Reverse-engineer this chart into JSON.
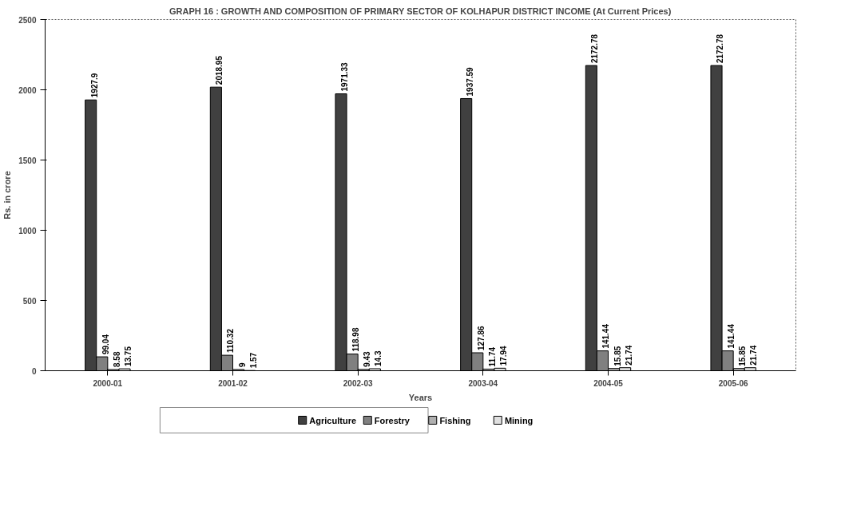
{
  "chart_data": {
    "type": "bar",
    "title": "GRAPH 16 : GROWTH AND COMPOSITION OF PRIMARY SECTOR OF KOLHAPUR DISTRICT INCOME (At Current Prices)",
    "xlabel": "Years",
    "ylabel": "Rs. in crore",
    "categories": [
      "2000-01",
      "2001-02",
      "2002-03",
      "2003-04",
      "2004-05",
      "2005-06"
    ],
    "series": [
      {
        "name": "Agriculture",
        "color": "#404040",
        "values": [
          1927.9,
          2018.95,
          1971.33,
          1937.59,
          2172.78,
          2172.78
        ]
      },
      {
        "name": "Forestry",
        "color": "#808080",
        "values": [
          99.04,
          110.32,
          118.98,
          127.86,
          141.44,
          141.44
        ]
      },
      {
        "name": "Fishing",
        "color": "#b0b0b0",
        "values": [
          8.58,
          9,
          9.43,
          11.74,
          15.85,
          15.85
        ]
      },
      {
        "name": "Mining",
        "color": "#e0e0e0",
        "values": [
          13.75,
          1.57,
          14.3,
          17.94,
          21.74,
          21.74
        ]
      }
    ],
    "ylim": [
      0,
      2500
    ],
    "yticks": [
      0,
      500,
      1000,
      1500,
      2000,
      2500
    ],
    "data_labels": true,
    "grid": false,
    "legend": "bottom"
  }
}
